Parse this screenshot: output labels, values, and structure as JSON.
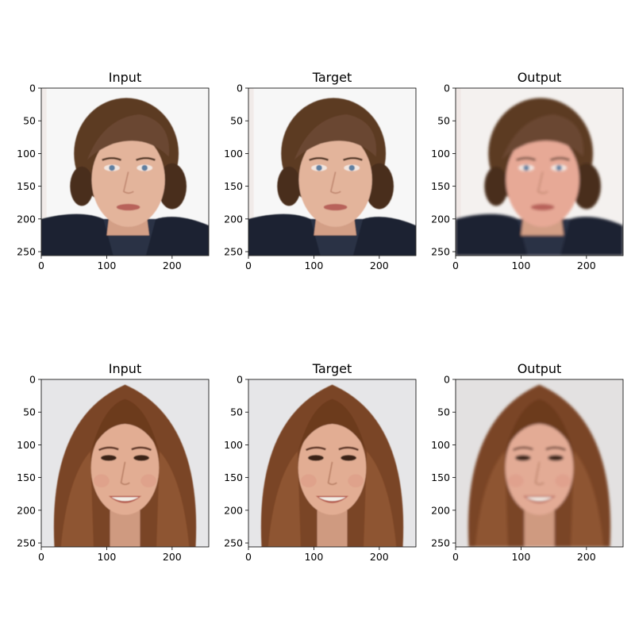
{
  "figure": {
    "panels": [
      {
        "title": "Input",
        "content": "male face photo, dark brown hair, white background, dark jacket"
      },
      {
        "title": "Target",
        "content": "male face photo, dark brown hair, white background, dark jacket"
      },
      {
        "title": "Output",
        "content": "reconstructed male face, slightly blurred"
      },
      {
        "title": "Input",
        "content": "female face photo, long auburn hair, smiling"
      },
      {
        "title": "Target",
        "content": "female face photo, long auburn hair, smiling"
      },
      {
        "title": "Output",
        "content": "reconstructed female face, slightly blurred"
      }
    ],
    "x_ticks": [
      "0",
      "100",
      "200"
    ],
    "y_ticks": [
      "0",
      "50",
      "100",
      "150",
      "200",
      "250"
    ],
    "x_tick_values": [
      0,
      100,
      200
    ],
    "y_tick_values": [
      0,
      50,
      100,
      150,
      200,
      250
    ],
    "image_extent": 256
  },
  "colors": {
    "male_hair": "#5b3a24",
    "male_skin": "#e3b49b",
    "male_jacket": "#1c2330",
    "female_hair": "#7a4525",
    "female_skin": "#e2ad93",
    "bg_white": "#f7f7f7",
    "bg_gray": "#e6e6e8"
  }
}
